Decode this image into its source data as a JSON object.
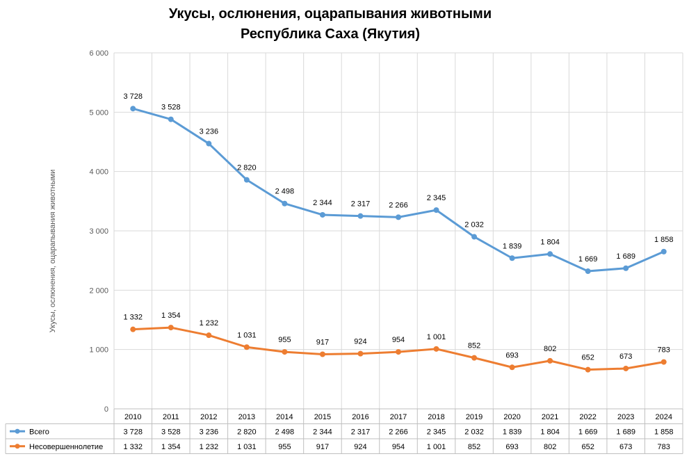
{
  "chart_data": {
    "type": "line",
    "title": "Укусы, ослюнения, оцарапывания животными",
    "subtitle": "Республика Саха (Якутия)",
    "xlabel": "",
    "ylabel": "Укусы, ослюнения, оцарапывания животными",
    "ylim": [
      0,
      6000
    ],
    "yticks": [
      0,
      1000,
      2000,
      3000,
      4000,
      5000,
      6000
    ],
    "ytick_labels": [
      "0",
      "1 000",
      "2 000",
      "3 000",
      "4 000",
      "5 000",
      "6 000"
    ],
    "categories": [
      "2010",
      "2011",
      "2012",
      "2013",
      "2014",
      "2015",
      "2016",
      "2017",
      "2018",
      "2019",
      "2020",
      "2021",
      "2022",
      "2023",
      "2024"
    ],
    "grid": true,
    "legend": "data-table-below",
    "series": [
      {
        "name": "Всего",
        "color": "#5B9BD5",
        "values": [
          5060,
          4880,
          4470,
          3860,
          3460,
          3270,
          3250,
          3230,
          3350,
          2900,
          2540,
          2610,
          2320,
          2370,
          2650
        ],
        "labels": [
          "3 728",
          "3 528",
          "3 236",
          "2 820",
          "2 498",
          "2 344",
          "2 317",
          "2 266",
          "2 345",
          "2 032",
          "1 839",
          "1 804",
          "1 669",
          "1 689",
          "1 858"
        ]
      },
      {
        "name": "Несовершеннолетие",
        "color": "#ED7D31",
        "values": [
          1340,
          1370,
          1240,
          1040,
          960,
          920,
          930,
          960,
          1010,
          860,
          700,
          810,
          660,
          680,
          790
        ],
        "labels": [
          "1 332",
          "1 354",
          "1 232",
          "1 031",
          "955",
          "917",
          "924",
          "954",
          "1 001",
          "852",
          "693",
          "802",
          "652",
          "673",
          "783"
        ]
      }
    ]
  }
}
